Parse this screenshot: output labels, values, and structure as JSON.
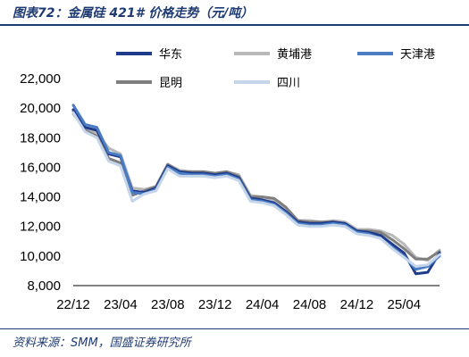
{
  "title": "图表72：金属硅 421# 价格走势（元/吨）",
  "source": "资料来源：SMM，国盛证券研究所",
  "chart_data": {
    "type": "line",
    "x_ticks": [
      "22/12",
      "23/04",
      "23/08",
      "23/12",
      "24/04",
      "24/08",
      "24/12",
      "25/04"
    ],
    "y_ticks": [
      8000,
      10000,
      12000,
      14000,
      16000,
      18000,
      20000,
      22000
    ],
    "y_tick_labels": [
      "8,000",
      "10,000",
      "12,000",
      "14,000",
      "16,000",
      "18,000",
      "20,000",
      "22,000"
    ],
    "ylim": [
      8000,
      22000
    ],
    "xlim": [
      "2022-12",
      "2025-07"
    ],
    "legend_placement": "top",
    "series": [
      {
        "name": "华东",
        "color": "#1f3b8c",
        "width": 3,
        "points": [
          [
            "2022-12",
            19900
          ],
          [
            "2023-01",
            18700
          ],
          [
            "2023-02",
            18500
          ],
          [
            "2023-03",
            16900
          ],
          [
            "2023-04",
            16700
          ],
          [
            "2023-05",
            14400
          ],
          [
            "2023-06",
            14300
          ],
          [
            "2023-07",
            14600
          ],
          [
            "2023-08",
            16100
          ],
          [
            "2023-09",
            15700
          ],
          [
            "2023-10",
            15600
          ],
          [
            "2023-11",
            15600
          ],
          [
            "2023-12",
            15500
          ],
          [
            "2024-01",
            15600
          ],
          [
            "2024-02",
            15300
          ],
          [
            "2024-03",
            13900
          ],
          [
            "2024-04",
            13800
          ],
          [
            "2024-05",
            13600
          ],
          [
            "2024-06",
            13000
          ],
          [
            "2024-07",
            12300
          ],
          [
            "2024-08",
            12200
          ],
          [
            "2024-09",
            12200
          ],
          [
            "2024-10",
            12300
          ],
          [
            "2024-11",
            12200
          ],
          [
            "2024-12",
            11700
          ],
          [
            "2025-01",
            11600
          ],
          [
            "2025-02",
            11400
          ],
          [
            "2025-03",
            10800
          ],
          [
            "2025-04",
            10200
          ],
          [
            "2025-05",
            8800
          ],
          [
            "2025-06",
            8900
          ],
          [
            "2025-07",
            10200
          ]
        ]
      },
      {
        "name": "黄埔港",
        "color": "#b8b8b8",
        "width": 3,
        "points": [
          [
            "2022-12",
            19600
          ],
          [
            "2023-01",
            18600
          ],
          [
            "2023-02",
            18300
          ],
          [
            "2023-03",
            17300
          ],
          [
            "2023-04",
            16900
          ],
          [
            "2023-05",
            14600
          ],
          [
            "2023-06",
            14500
          ],
          [
            "2023-07",
            14700
          ],
          [
            "2023-08",
            16200
          ],
          [
            "2023-09",
            15800
          ],
          [
            "2023-10",
            15700
          ],
          [
            "2023-11",
            15700
          ],
          [
            "2023-12",
            15600
          ],
          [
            "2024-01",
            15700
          ],
          [
            "2024-02",
            15500
          ],
          [
            "2024-03",
            14100
          ],
          [
            "2024-04",
            14000
          ],
          [
            "2024-05",
            13800
          ],
          [
            "2024-06",
            13200
          ],
          [
            "2024-07",
            12400
          ],
          [
            "2024-08",
            12400
          ],
          [
            "2024-09",
            12300
          ],
          [
            "2024-10",
            12400
          ],
          [
            "2024-11",
            12300
          ],
          [
            "2024-12",
            11800
          ],
          [
            "2025-01",
            11800
          ],
          [
            "2025-02",
            11700
          ],
          [
            "2025-03",
            11400
          ],
          [
            "2025-04",
            10800
          ],
          [
            "2025-05",
            9900
          ],
          [
            "2025-06",
            9700
          ],
          [
            "2025-07",
            10400
          ]
        ]
      },
      {
        "name": "天津港",
        "color": "#4a7cc4",
        "width": 3,
        "points": [
          [
            "2022-12",
            20200
          ],
          [
            "2023-01",
            18900
          ],
          [
            "2023-02",
            18700
          ],
          [
            "2023-03",
            17000
          ],
          [
            "2023-04",
            16800
          ],
          [
            "2023-05",
            14300
          ],
          [
            "2023-06",
            14200
          ],
          [
            "2023-07",
            14500
          ],
          [
            "2023-08",
            16000
          ],
          [
            "2023-09",
            15600
          ],
          [
            "2023-10",
            15500
          ],
          [
            "2023-11",
            15500
          ],
          [
            "2023-12",
            15400
          ],
          [
            "2024-01",
            15500
          ],
          [
            "2024-02",
            15200
          ],
          [
            "2024-03",
            13800
          ],
          [
            "2024-04",
            13700
          ],
          [
            "2024-05",
            13500
          ],
          [
            "2024-06",
            12900
          ],
          [
            "2024-07",
            12200
          ],
          [
            "2024-08",
            12100
          ],
          [
            "2024-09",
            12100
          ],
          [
            "2024-10",
            12200
          ],
          [
            "2024-11",
            12100
          ],
          [
            "2024-12",
            11600
          ],
          [
            "2025-01",
            11500
          ],
          [
            "2025-02",
            11200
          ],
          [
            "2025-03",
            10600
          ],
          [
            "2025-04",
            10000
          ],
          [
            "2025-05",
            9100
          ],
          [
            "2025-06",
            9300
          ],
          [
            "2025-07",
            10000
          ]
        ]
      },
      {
        "name": "昆明",
        "color": "#7f7f7f",
        "width": 3,
        "points": [
          [
            "2022-12",
            19800
          ],
          [
            "2023-01",
            18500
          ],
          [
            "2023-02",
            18100
          ],
          [
            "2023-03",
            16600
          ],
          [
            "2023-04",
            16300
          ],
          [
            "2023-05",
            14100
          ],
          [
            "2023-06",
            14400
          ],
          [
            "2023-07",
            14700
          ],
          [
            "2023-08",
            16200
          ],
          [
            "2023-09",
            15700
          ],
          [
            "2023-10",
            15700
          ],
          [
            "2023-11",
            15700
          ],
          [
            "2023-12",
            15600
          ],
          [
            "2024-01",
            15700
          ],
          [
            "2024-02",
            15400
          ],
          [
            "2024-03",
            14000
          ],
          [
            "2024-04",
            14000
          ],
          [
            "2024-05",
            13900
          ],
          [
            "2024-06",
            13300
          ],
          [
            "2024-07",
            12400
          ],
          [
            "2024-08",
            12300
          ],
          [
            "2024-09",
            12300
          ],
          [
            "2024-10",
            12300
          ],
          [
            "2024-11",
            12200
          ],
          [
            "2024-12",
            11700
          ],
          [
            "2025-01",
            11700
          ],
          [
            "2025-02",
            11600
          ],
          [
            "2025-03",
            11100
          ],
          [
            "2025-04",
            10500
          ],
          [
            "2025-05",
            9800
          ],
          [
            "2025-06",
            9800
          ],
          [
            "2025-07",
            10300
          ]
        ]
      },
      {
        "name": "四川",
        "color": "#c5d5ea",
        "width": 3,
        "points": [
          [
            "2022-12",
            19700
          ],
          [
            "2023-01",
            18400
          ],
          [
            "2023-02",
            18000
          ],
          [
            "2023-03",
            16400
          ],
          [
            "2023-04",
            16100
          ],
          [
            "2023-05",
            13700
          ],
          [
            "2023-06",
            14200
          ],
          [
            "2023-07",
            14400
          ],
          [
            "2023-08",
            15900
          ],
          [
            "2023-09",
            15400
          ],
          [
            "2023-10",
            15400
          ],
          [
            "2023-11",
            15400
          ],
          [
            "2023-12",
            15300
          ],
          [
            "2024-01",
            15400
          ],
          [
            "2024-02",
            15100
          ],
          [
            "2024-03",
            13700
          ],
          [
            "2024-04",
            13600
          ],
          [
            "2024-05",
            13400
          ],
          [
            "2024-06",
            12800
          ],
          [
            "2024-07",
            12100
          ],
          [
            "2024-08",
            12000
          ],
          [
            "2024-09",
            12000
          ],
          [
            "2024-10",
            12100
          ],
          [
            "2024-11",
            12000
          ],
          [
            "2024-12",
            11500
          ],
          [
            "2025-01",
            11400
          ],
          [
            "2025-02",
            11200
          ],
          [
            "2025-03",
            10500
          ],
          [
            "2025-04",
            9900
          ],
          [
            "2025-05",
            9300
          ],
          [
            "2025-06",
            9400
          ],
          [
            "2025-07",
            10100
          ]
        ]
      }
    ]
  }
}
